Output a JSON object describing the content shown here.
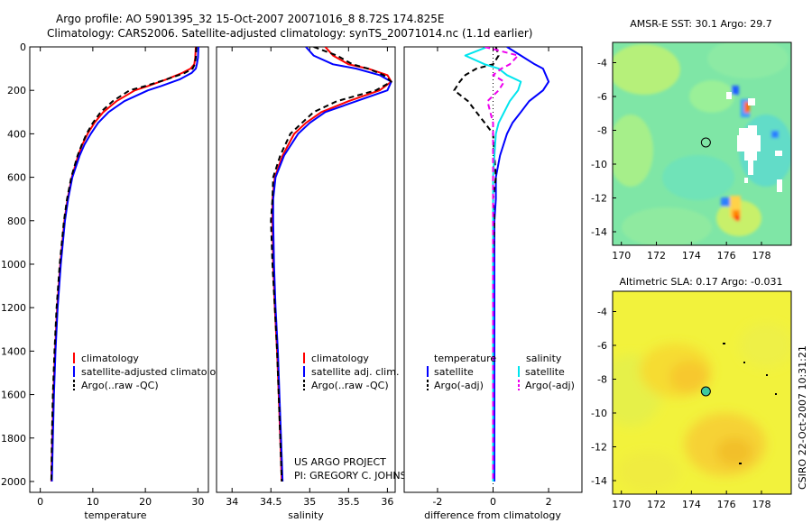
{
  "title": {
    "line1": "Argo profile: AO 5901395_32 15-Oct-2007 20071016_8 8.72S 174.825E",
    "line2": "Climatology: CARS2006. Satellite-adjusted climatology: synTS_20071014.nc (1.1d earlier)"
  },
  "colors": {
    "climatology": "#ff0000",
    "satellite": "#0000ff",
    "argo": "#000000",
    "sat_salinity": "#00e5ee",
    "argo_salinity": "#ee00ee"
  },
  "chart_data": [
    {
      "type": "line",
      "id": "temperature",
      "xlabel": "temperature",
      "ylabel": "",
      "xlim": [
        -2,
        32
      ],
      "ylim": [
        2050,
        0
      ],
      "xticks": [
        0,
        10,
        20,
        30
      ],
      "yticks": [
        0,
        200,
        400,
        600,
        800,
        1000,
        1200,
        1400,
        1600,
        1800,
        2000
      ],
      "depth": [
        0,
        50,
        80,
        100,
        120,
        150,
        180,
        200,
        250,
        300,
        350,
        400,
        450,
        500,
        600,
        700,
        800,
        1000,
        1200,
        1400,
        1600,
        1800,
        2000
      ],
      "series": [
        {
          "name": "climatology",
          "style": "solid",
          "values": [
            29.6,
            29.5,
            29.3,
            28.6,
            27.0,
            24.0,
            20.5,
            18.0,
            14.5,
            12.0,
            10.3,
            9.0,
            8.0,
            7.2,
            6.0,
            5.2,
            4.6,
            3.8,
            3.2,
            2.8,
            2.5,
            2.3,
            2.1
          ]
        },
        {
          "name": "satellite-adjusted climatology",
          "style": "solid",
          "values": [
            30.1,
            30.0,
            29.8,
            29.6,
            28.8,
            26.5,
            23.0,
            20.5,
            16.0,
            13.0,
            11.0,
            9.6,
            8.4,
            7.5,
            6.1,
            5.3,
            4.7,
            3.9,
            3.3,
            2.9,
            2.6,
            2.4,
            2.2
          ]
        },
        {
          "name": "Argo(..raw -QC)",
          "style": "dashed",
          "values": [
            29.7,
            29.6,
            29.4,
            29.0,
            27.5,
            24.0,
            20.0,
            17.0,
            13.8,
            11.5,
            10.0,
            8.8,
            7.9,
            7.1,
            5.9,
            5.1,
            4.5,
            3.7,
            3.1,
            2.7,
            2.4,
            2.2,
            2.1
          ]
        }
      ],
      "legend": [
        "climatology",
        "satellite-adjusted climatology",
        "Argo(..raw -QC)"
      ]
    },
    {
      "type": "line",
      "id": "salinity",
      "xlabel": "salinity",
      "ylabel": "",
      "xlim": [
        33.8,
        36.1
      ],
      "ylim": [
        2050,
        0
      ],
      "xticks": [
        34,
        34.5,
        35,
        35.5,
        36
      ],
      "yticks": [],
      "depth": [
        0,
        40,
        80,
        100,
        130,
        160,
        200,
        250,
        300,
        350,
        400,
        500,
        600,
        700,
        800,
        1000,
        1200,
        1400,
        1600,
        1800,
        2000
      ],
      "series": [
        {
          "name": "climatology",
          "style": "solid",
          "values": [
            35.2,
            35.3,
            35.5,
            35.75,
            36.0,
            36.05,
            35.9,
            35.5,
            35.15,
            34.95,
            34.8,
            34.65,
            34.55,
            34.52,
            34.52,
            34.53,
            34.55,
            34.58,
            34.6,
            34.62,
            34.64
          ]
        },
        {
          "name": "satellite adj. clim.",
          "style": "solid",
          "values": [
            34.95,
            35.05,
            35.3,
            35.6,
            35.9,
            36.05,
            36.0,
            35.6,
            35.2,
            35.0,
            34.85,
            34.67,
            34.56,
            34.53,
            34.53,
            34.54,
            34.56,
            34.59,
            34.61,
            34.63,
            34.65
          ]
        },
        {
          "name": "Argo(..raw -QC)",
          "style": "dashed",
          "values": [
            35.05,
            35.35,
            35.55,
            35.75,
            35.95,
            36.05,
            35.85,
            35.35,
            35.05,
            34.9,
            34.75,
            34.62,
            34.53,
            34.52,
            34.5,
            34.52,
            34.55,
            34.58,
            34.6,
            34.62,
            34.64
          ]
        }
      ],
      "legend": [
        "climatology",
        "satellite adj. clim.",
        "Argo(..raw -QC)"
      ],
      "annotation": [
        "US ARGO PROJECT",
        "PI: GREGORY C. JOHNSON"
      ]
    },
    {
      "type": "line",
      "id": "difference",
      "xlabel": "difference from climatology",
      "ylabel": "",
      "xlim": [
        -3.2,
        3.2
      ],
      "ylim": [
        2050,
        0
      ],
      "xticks": [
        -2,
        0,
        2
      ],
      "yticks": [],
      "depth": [
        0,
        40,
        80,
        100,
        130,
        160,
        200,
        250,
        300,
        350,
        400,
        500,
        600,
        700,
        800,
        1000,
        1200,
        1400,
        1600,
        1800,
        2000
      ],
      "series": [
        {
          "name": "temperature satellite",
          "style": "solid",
          "color": "satellite",
          "values": [
            0.5,
            1.0,
            1.5,
            1.8,
            1.9,
            2.0,
            1.8,
            1.3,
            1.0,
            0.7,
            0.5,
            0.25,
            0.1,
            0.1,
            0.05,
            0.05,
            0.05,
            0.05,
            0.05,
            0.05,
            0.05
          ]
        },
        {
          "name": "temperature Argo(-adj)",
          "style": "dashed",
          "color": "argo",
          "values": [
            0.1,
            0.2,
            0.0,
            -0.6,
            -1.0,
            -1.2,
            -1.4,
            -0.9,
            -0.6,
            -0.3,
            0.0,
            0.05,
            0.1,
            0.0,
            0.05,
            0.0,
            0.0,
            0.0,
            0.0,
            0.0,
            0.0
          ]
        },
        {
          "name": "salinity satellite",
          "style": "solid",
          "color": "sat_salinity",
          "values": [
            -0.2,
            -1.0,
            -0.3,
            0.2,
            0.5,
            1.0,
            0.9,
            0.6,
            0.4,
            0.2,
            0.1,
            0.05,
            0.0,
            0.0,
            0.0,
            0.0,
            0.0,
            0.0,
            0.0,
            0.0,
            0.0
          ]
        },
        {
          "name": "salinity Argo(-adj)",
          "style": "dashed",
          "color": "argo_salinity",
          "values": [
            -0.3,
            0.9,
            0.6,
            0.3,
            0.0,
            0.4,
            0.2,
            -0.2,
            -0.1,
            0.0,
            0.0,
            0.0,
            0.0,
            0.0,
            0.0,
            0.0,
            0.0,
            0.0,
            0.0,
            0.0,
            0.0
          ]
        }
      ],
      "legend_headers": [
        "temperature",
        "salinity"
      ],
      "legend": [
        "satellite",
        "Argo(-adj)",
        "satellite",
        "Argo(-adj)"
      ]
    },
    {
      "type": "heatmap",
      "id": "sst-map",
      "title": "AMSR-E SST: 30.1  Argo: 29.7",
      "xlim": [
        169.5,
        179.7
      ],
      "ylim": [
        -14.8,
        -2.8
      ],
      "xticks": [
        170,
        172,
        174,
        176,
        178
      ],
      "yticks": [
        -4,
        -6,
        -8,
        -10,
        -12,
        -14
      ],
      "marker": {
        "lon": 174.825,
        "lat": -8.72
      }
    },
    {
      "type": "heatmap",
      "id": "sla-map",
      "title": "Altimetric SLA: 0.17  Argo: -0.031",
      "xlim": [
        169.5,
        179.7
      ],
      "ylim": [
        -14.8,
        -2.8
      ],
      "xticks": [
        170,
        172,
        174,
        176,
        178
      ],
      "yticks": [
        -4,
        -6,
        -8,
        -10,
        -12,
        -14
      ],
      "marker": {
        "lon": 174.825,
        "lat": -8.72
      }
    }
  ],
  "footer": "CSIRO 22-Oct-2007 10:31:21"
}
